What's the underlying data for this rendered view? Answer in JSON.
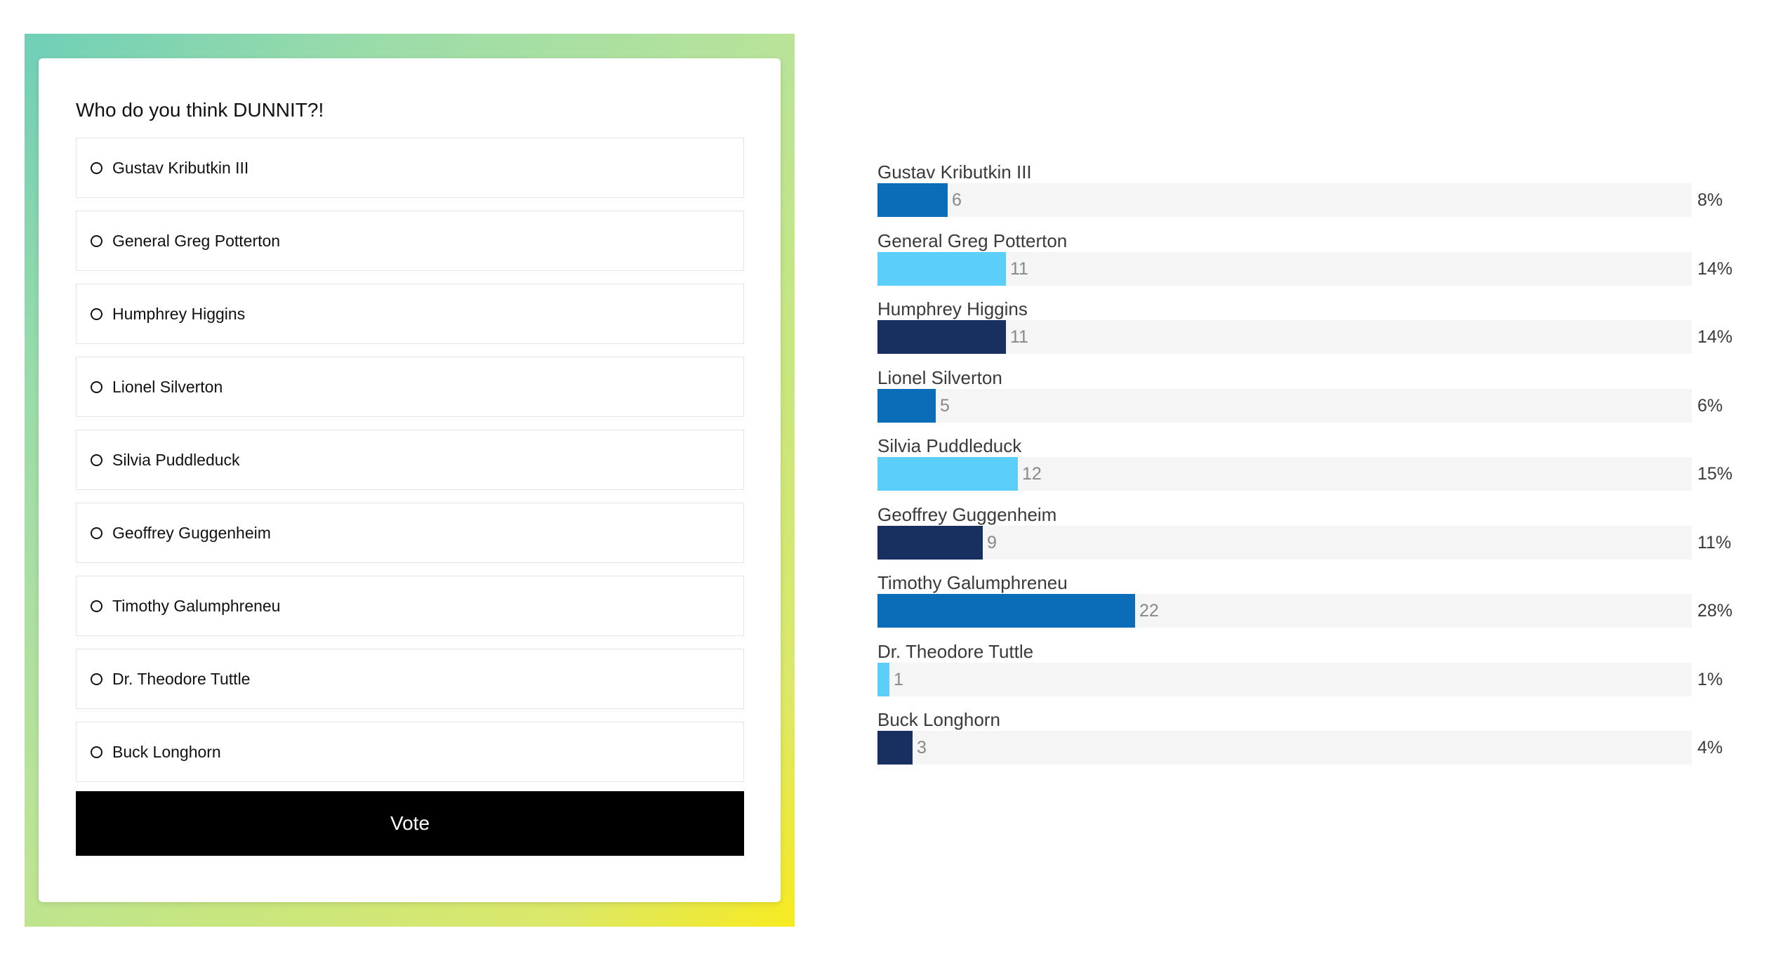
{
  "poll": {
    "question": "Who do you think DUNNIT?!",
    "options": [
      {
        "label": "Gustav Kributkin III"
      },
      {
        "label": "General Greg Potterton"
      },
      {
        "label": "Humphrey Higgins"
      },
      {
        "label": "Lionel Silverton"
      },
      {
        "label": "Silvia Puddleduck"
      },
      {
        "label": "Geoffrey Guggenheim"
      },
      {
        "label": "Timothy Galumphreneu"
      },
      {
        "label": "Dr. Theodore Tuttle"
      },
      {
        "label": "Buck Longhorn"
      }
    ],
    "vote_label": "Vote"
  },
  "colors": {
    "bar_palette": [
      "#0b6db7",
      "#5bcefa",
      "#17305f"
    ],
    "track": "#f5f5f5",
    "vote_button": "#000000"
  },
  "results": [
    {
      "name": "Gustav Kributkin III",
      "votes": 6,
      "votes_text": "6",
      "percent": 8,
      "percent_text": "8%"
    },
    {
      "name": "General Greg Potterton",
      "votes": 11,
      "votes_text": "11",
      "percent": 14,
      "percent_text": "14%"
    },
    {
      "name": "Humphrey Higgins",
      "votes": 11,
      "votes_text": "11",
      "percent": 14,
      "percent_text": "14%"
    },
    {
      "name": "Lionel Silverton",
      "votes": 5,
      "votes_text": "5",
      "percent": 6,
      "percent_text": "6%"
    },
    {
      "name": "Silvia Puddleduck",
      "votes": 12,
      "votes_text": "12",
      "percent": 15,
      "percent_text": "15%"
    },
    {
      "name": "Geoffrey Guggenheim",
      "votes": 9,
      "votes_text": "9",
      "percent": 11,
      "percent_text": "11%"
    },
    {
      "name": "Timothy Galumphreneu",
      "votes": 22,
      "votes_text": "22",
      "percent": 28,
      "percent_text": "28%"
    },
    {
      "name": "Dr. Theodore Tuttle",
      "votes": 1,
      "votes_text": "1",
      "percent": 1,
      "percent_text": "1%"
    },
    {
      "name": "Buck Longhorn",
      "votes": 3,
      "votes_text": "3",
      "percent": 4,
      "percent_text": "4%"
    }
  ]
}
